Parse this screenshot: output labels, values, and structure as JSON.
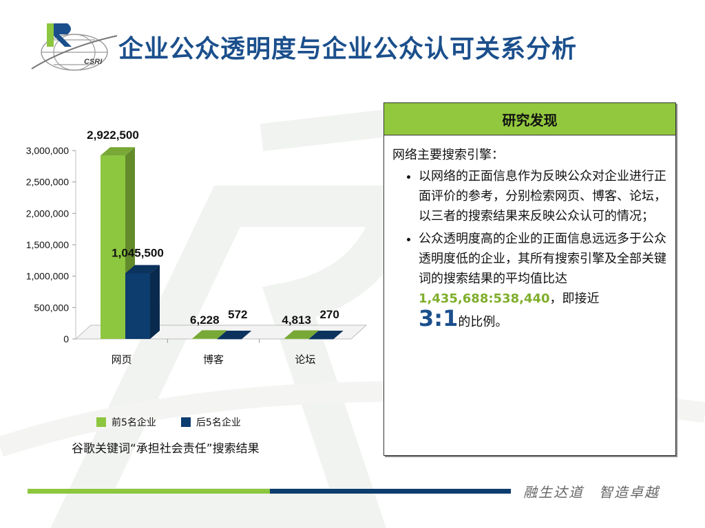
{
  "header": {
    "title": "企业公众透明度与企业公众认可关系分析",
    "logo_text": "CSRI"
  },
  "legend": {
    "series1": "前5名企业",
    "series2": "后5名企业"
  },
  "caption": "谷歌关键词“承担社会责任”搜索结果",
  "panel": {
    "title": "研究发现",
    "intro": "网络主要搜索引擎：",
    "bullet1": "以网络的正面信息作为反映公众对企业进行正面评价的参考，分别检索网页、博客、论坛，以三者的搜索结果来反映公众认可的情况；",
    "bullet2_text": "公众透明度高的企业的正面信息远远多于公众透明度低的企业，其所有搜索引擎及全部关键词的搜索结果的平均值比达",
    "bullet2_value": "1,435,688:538,440",
    "bullet2_suffix": "，即接近",
    "bullet2_ratio": "3:1",
    "bullet2_end": "的比例。"
  },
  "footer": {
    "slogan": "融生达道　智造卓越"
  },
  "colors": {
    "green": "#8dc63f",
    "blue": "#0d3c6e",
    "title_blue": "#1b4f8c",
    "panel_header": "#92c83e"
  },
  "chart_data": {
    "type": "bar",
    "categories": [
      "网页",
      "博客",
      "论坛"
    ],
    "series": [
      {
        "name": "前5名企业",
        "values": [
          2922500,
          6228,
          4813
        ],
        "labels": [
          "2,922,500",
          "6,228",
          "4,813"
        ]
      },
      {
        "name": "后5名企业",
        "values": [
          1045500,
          572,
          270
        ],
        "labels": [
          "1,045,500",
          "572",
          "270"
        ]
      }
    ],
    "ylim": [
      0,
      3000000
    ],
    "yticks": [
      0,
      500000,
      1000000,
      1500000,
      2000000,
      2500000,
      3000000
    ],
    "ytick_labels": [
      "0",
      "500,000",
      "1,000,000",
      "1,500,000",
      "2,000,000",
      "2,500,000",
      "3,000,000"
    ],
    "grid": false,
    "legend_position": "bottom"
  }
}
